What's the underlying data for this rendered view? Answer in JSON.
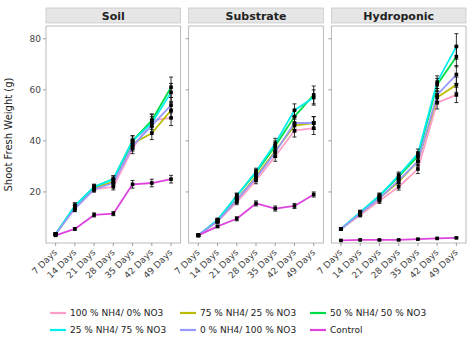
{
  "chart_data": [
    {
      "type": "line",
      "title": "Soil",
      "ylabel": "Shoot Fresh Weight (g)",
      "categories": [
        "7 Days",
        "14 Days",
        "21 Days",
        "28 Days",
        "35 Days",
        "42 Days",
        "49 Days"
      ],
      "ylim": [
        0,
        85
      ],
      "yticks": [
        20,
        40,
        60,
        80
      ],
      "grid": false,
      "legend": "bottom",
      "marker": "square",
      "series": [
        {
          "name": "100 % NH4/ 0% NO3",
          "color": "#FF9EC8",
          "values": [
            3.5,
            13.5,
            21.0,
            22.0,
            37.0,
            48.0,
            49.0
          ],
          "errors": [
            0.4,
            1.2,
            1.0,
            1.2,
            2.0,
            2.5,
            3.0
          ]
        },
        {
          "name": "75 % NH4/ 25 % NO3",
          "color": "#BBBB00",
          "values": [
            3.5,
            14.0,
            21.5,
            24.0,
            39.0,
            43.0,
            52.0
          ],
          "errors": [
            0.4,
            1.2,
            1.0,
            1.3,
            2.0,
            2.5,
            3.0
          ]
        },
        {
          "name": "50 % NH4/ 50 % NO3",
          "color": "#00DD44",
          "values": [
            3.5,
            14.5,
            22.0,
            25.0,
            40.0,
            48.0,
            61.0
          ],
          "errors": [
            0.4,
            1.2,
            1.0,
            1.3,
            2.0,
            2.5,
            4.0
          ]
        },
        {
          "name": "25 % NH4/ 75 % NO3",
          "color": "#00EEEE",
          "values": [
            3.5,
            14.5,
            22.0,
            25.0,
            40.0,
            47.0,
            59.0
          ],
          "errors": [
            0.4,
            1.2,
            1.0,
            1.3,
            2.0,
            2.5,
            3.5
          ]
        },
        {
          "name": "0 % NH4/ 100 % NO3",
          "color": "#9999FF",
          "values": [
            3.5,
            13.5,
            21.0,
            23.5,
            38.0,
            46.0,
            54.0
          ],
          "errors": [
            0.4,
            1.2,
            1.0,
            1.3,
            2.0,
            2.5,
            3.0
          ]
        },
        {
          "name": "Control",
          "color": "#DD44DD",
          "values": [
            3.0,
            5.5,
            11.0,
            11.5,
            23.0,
            23.5,
            25.0
          ],
          "errors": [
            0.3,
            0.5,
            0.8,
            0.8,
            1.5,
            1.5,
            1.5
          ]
        }
      ]
    },
    {
      "type": "line",
      "title": "Substrate",
      "categories": [
        "7 Days",
        "14 Days",
        "21 Days",
        "28 Days",
        "35 Days",
        "42 Days",
        "49 Days"
      ],
      "ylim": [
        0,
        85
      ],
      "yticks": [
        20,
        40,
        60,
        80
      ],
      "grid": false,
      "tick_labels": "x",
      "marker": "square",
      "series": [
        {
          "color": "#FF9EC8",
          "values": [
            3.0,
            8.5,
            16.0,
            24.5,
            34.0,
            44.0,
            45.0
          ],
          "errors": [
            0.3,
            0.7,
            1.0,
            1.3,
            2.0,
            2.5,
            2.5
          ]
        },
        {
          "color": "#BBBB00",
          "values": [
            3.0,
            8.5,
            17.0,
            26.0,
            36.0,
            46.0,
            47.0
          ],
          "errors": [
            0.3,
            0.7,
            1.0,
            1.3,
            2.0,
            2.5,
            2.5
          ]
        },
        {
          "color": "#00DD44",
          "values": [
            3.0,
            9.0,
            18.5,
            27.5,
            38.0,
            49.5,
            58.0
          ],
          "errors": [
            0.3,
            0.7,
            1.0,
            1.3,
            2.0,
            2.5,
            3.5
          ]
        },
        {
          "color": "#00EEEE",
          "values": [
            3.0,
            9.0,
            18.5,
            28.0,
            39.0,
            52.0,
            57.0
          ],
          "errors": [
            0.3,
            0.7,
            1.0,
            1.3,
            2.0,
            2.5,
            3.0
          ]
        },
        {
          "color": "#9999FF",
          "values": [
            3.0,
            8.5,
            17.0,
            25.5,
            35.5,
            47.0,
            47.0
          ],
          "errors": [
            0.3,
            0.7,
            1.0,
            1.3,
            2.0,
            2.5,
            2.5
          ]
        },
        {
          "color": "#DD44DD",
          "values": [
            3.0,
            6.5,
            9.5,
            15.5,
            13.5,
            14.5,
            19.0
          ],
          "errors": [
            0.3,
            0.5,
            0.8,
            1.0,
            1.0,
            1.0,
            1.0
          ]
        }
      ]
    },
    {
      "type": "line",
      "title": "Hydroponic",
      "categories": [
        "7 Days",
        "14 Days",
        "21 Days",
        "28 Days",
        "35 Days",
        "42 Days",
        "49 Days"
      ],
      "ylim": [
        0,
        85
      ],
      "yticks": [
        20,
        40,
        60,
        80
      ],
      "grid": false,
      "tick_labels": "x",
      "marker": "square",
      "series": [
        {
          "color": "#FF9EC8",
          "values": [
            5.5,
            11.0,
            16.5,
            22.0,
            29.0,
            55.0,
            58.0
          ],
          "errors": [
            0.4,
            0.8,
            1.0,
            1.3,
            1.8,
            2.5,
            3.0
          ]
        },
        {
          "color": "#BBBB00",
          "values": [
            5.5,
            11.5,
            17.5,
            24.0,
            32.0,
            57.0,
            62.0
          ],
          "errors": [
            0.4,
            0.8,
            1.0,
            1.3,
            1.8,
            2.5,
            3.0
          ]
        },
        {
          "color": "#00DD44",
          "values": [
            5.5,
            12.0,
            18.5,
            26.0,
            34.0,
            62.0,
            73.0
          ],
          "errors": [
            0.4,
            0.8,
            1.0,
            1.3,
            1.8,
            2.5,
            4.0
          ]
        },
        {
          "color": "#00EEEE",
          "values": [
            5.5,
            12.0,
            18.5,
            26.5,
            35.0,
            63.0,
            77.0
          ],
          "errors": [
            0.4,
            0.8,
            1.0,
            1.3,
            1.8,
            2.5,
            5.0
          ]
        },
        {
          "color": "#9999FF",
          "values": [
            5.5,
            11.5,
            17.5,
            24.5,
            32.0,
            58.0,
            66.0
          ],
          "errors": [
            0.4,
            0.8,
            1.0,
            1.3,
            1.8,
            2.5,
            3.5
          ]
        },
        {
          "color": "#DD44DD",
          "values": [
            1.0,
            1.2,
            1.2,
            1.2,
            1.5,
            1.8,
            2.0
          ],
          "errors": [
            0.1,
            0.1,
            0.1,
            0.1,
            0.2,
            0.2,
            0.2
          ]
        }
      ]
    }
  ]
}
